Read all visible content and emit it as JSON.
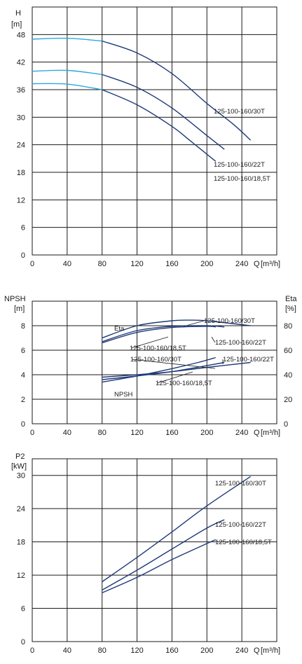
{
  "chart_data": [
    {
      "type": "line",
      "ylabel": "H",
      "yunit": "[m]",
      "xlabel": "Q",
      "xunit": "[m³/h]",
      "xlim": [
        0,
        280
      ],
      "ylim": [
        0,
        54
      ],
      "xticks": [
        0,
        40,
        80,
        120,
        160,
        200,
        240
      ],
      "yticks": [
        0,
        6,
        12,
        18,
        24,
        30,
        36,
        42,
        48
      ],
      "grid": true,
      "series": [
        {
          "name": "125-100-160/30T",
          "color": "#1f3a78",
          "light_color": "#2fa8dc",
          "light_until": 80,
          "x": [
            0,
            40,
            80,
            120,
            160,
            200,
            230,
            250
          ],
          "y": [
            47,
            47.2,
            46.6,
            44,
            39.5,
            33,
            28.5,
            25
          ]
        },
        {
          "name": "125-100-160/22T",
          "color": "#1f3a78",
          "light_color": "#2fa8dc",
          "light_until": 80,
          "x": [
            0,
            40,
            80,
            120,
            160,
            200,
            220
          ],
          "y": [
            40,
            40.2,
            39.3,
            36.5,
            32,
            26,
            23
          ]
        },
        {
          "name": "125-100-160/18,5T",
          "color": "#1f3a78",
          "light_color": "#2fa8dc",
          "light_until": 80,
          "x": [
            0,
            40,
            80,
            120,
            160,
            180,
            210
          ],
          "y": [
            37.3,
            37.2,
            36,
            32.7,
            28,
            25,
            20.4
          ]
        }
      ]
    },
    {
      "type": "line",
      "ylabel": "NPSH",
      "yunit": "[m]",
      "y2label": "Eta",
      "y2unit": "[%]",
      "xlabel": "Q",
      "xunit": "[m³/h]",
      "xlim": [
        0,
        280
      ],
      "ylim": [
        0,
        10
      ],
      "y2lim": [
        0,
        100
      ],
      "xticks": [
        0,
        40,
        80,
        120,
        160,
        200,
        240
      ],
      "yticks": [
        0,
        2,
        4,
        6,
        8
      ],
      "y2ticks": [
        0,
        20,
        40,
        60,
        80
      ],
      "grid": true,
      "annotations": [
        "Eta",
        "NPSH"
      ],
      "series": [
        {
          "name": "125-100-160/30T",
          "group": "Eta",
          "axis": "right",
          "x": [
            80,
            120,
            160,
            180,
            200,
            250
          ],
          "y": [
            70,
            80,
            84,
            84.5,
            84,
            80
          ]
        },
        {
          "name": "125-100-160/22T",
          "group": "Eta",
          "axis": "right",
          "x": [
            80,
            120,
            160,
            200,
            220
          ],
          "y": [
            67,
            76,
            79.5,
            80,
            79
          ]
        },
        {
          "name": "125-100-160/18,5T",
          "group": "Eta",
          "axis": "right",
          "x": [
            80,
            120,
            160,
            200,
            210
          ],
          "y": [
            66,
            74.5,
            78.5,
            79.5,
            79
          ]
        },
        {
          "name": "125-100-160/30T",
          "group": "NPSH",
          "axis": "left",
          "x": [
            80,
            120,
            160,
            200,
            250
          ],
          "y": [
            3.8,
            4,
            4.25,
            4.6,
            5
          ]
        },
        {
          "name": "125-100-160/22T",
          "group": "NPSH",
          "axis": "left",
          "x": [
            80,
            120,
            160,
            200,
            220
          ],
          "y": [
            3.6,
            3.9,
            4.25,
            4.75,
            5
          ]
        },
        {
          "name": "125-100-160/18,5T",
          "group": "NPSH",
          "axis": "left",
          "x": [
            80,
            120,
            160,
            190,
            210
          ],
          "y": [
            3.4,
            3.9,
            4.5,
            5,
            5.4
          ]
        }
      ]
    },
    {
      "type": "line",
      "ylabel": "P2",
      "yunit": "[kW]",
      "xlabel": "Q",
      "xunit": "[m³/h]",
      "xlim": [
        0,
        280
      ],
      "ylim": [
        0,
        33
      ],
      "xticks": [
        0,
        40,
        80,
        120,
        160,
        200,
        240
      ],
      "yticks": [
        0,
        6,
        12,
        18,
        24,
        30
      ],
      "grid": true,
      "series": [
        {
          "name": "125-100-160/30T",
          "x": [
            80,
            120,
            160,
            200,
            250
          ],
          "y": [
            10.8,
            15.2,
            19.8,
            24.5,
            29.8
          ]
        },
        {
          "name": "125-100-160/22T",
          "x": [
            80,
            120,
            160,
            200,
            220
          ],
          "y": [
            9.3,
            12.9,
            16.7,
            20.5,
            22
          ]
        },
        {
          "name": "125-100-160/18,5T",
          "x": [
            80,
            120,
            160,
            200,
            210
          ],
          "y": [
            8.8,
            11.6,
            14.8,
            17.7,
            18.4
          ]
        }
      ]
    }
  ]
}
